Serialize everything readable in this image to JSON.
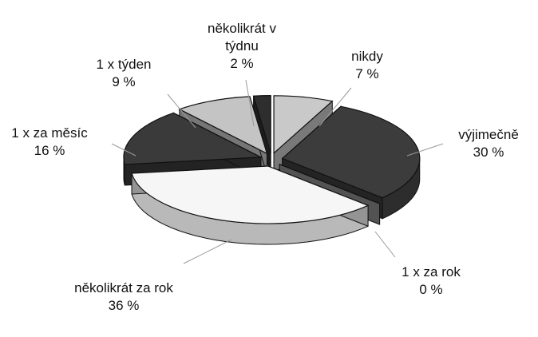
{
  "chart_data": {
    "type": "pie",
    "categories": [
      "nikdy",
      "výjimečně",
      "1 x za rok",
      "několikrát za rok",
      "1 x za měsíc",
      "1 x týden",
      "několikrát v týdnu"
    ],
    "values": [
      7,
      30,
      0,
      36,
      16,
      9,
      2
    ],
    "value_labels": [
      "7 %",
      "30 %",
      "0 %",
      "36 %",
      "16 %",
      "9 %",
      "2 %"
    ],
    "colors": [
      "#c9c9c9",
      "#3c3c3c",
      "#8a8a8a",
      "#f6f6f6",
      "#3a3a3a",
      "#c4c4c4",
      "#2e2e2e"
    ]
  }
}
